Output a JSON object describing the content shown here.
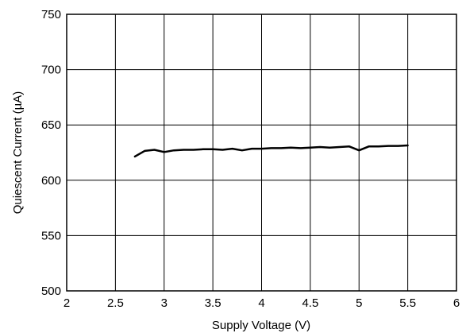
{
  "chart_data": {
    "type": "line",
    "title": "",
    "xlabel": "Supply Voltage (V)",
    "ylabel": "Quiescent Current (µA)",
    "xlim": [
      2,
      6
    ],
    "ylim": [
      500,
      750
    ],
    "grid": true,
    "x_ticks": [
      "2",
      "2.5",
      "3",
      "3.5",
      "4",
      "4.5",
      "5",
      "5.5",
      "6"
    ],
    "y_ticks": [
      "500",
      "550",
      "600",
      "650",
      "700",
      "750"
    ],
    "series": [
      {
        "color": "#000000",
        "x": [
          2.7,
          2.8,
          2.9,
          3.0,
          3.1,
          3.2,
          3.3,
          3.4,
          3.5,
          3.6,
          3.7,
          3.8,
          3.9,
          4.0,
          4.1,
          4.2,
          4.3,
          4.4,
          4.5,
          4.6,
          4.7,
          4.8,
          4.9,
          5.0,
          5.1,
          5.2,
          5.3,
          5.4,
          5.5
        ],
        "y": [
          621.5,
          626.5,
          627.5,
          625.5,
          627,
          627.5,
          627.5,
          628,
          628,
          627.5,
          628.5,
          627,
          628.5,
          628.5,
          629,
          629,
          629.5,
          629,
          629.5,
          630,
          629.5,
          630,
          630.5,
          627,
          630.5,
          630.5,
          631,
          631,
          631.5
        ]
      }
    ]
  }
}
